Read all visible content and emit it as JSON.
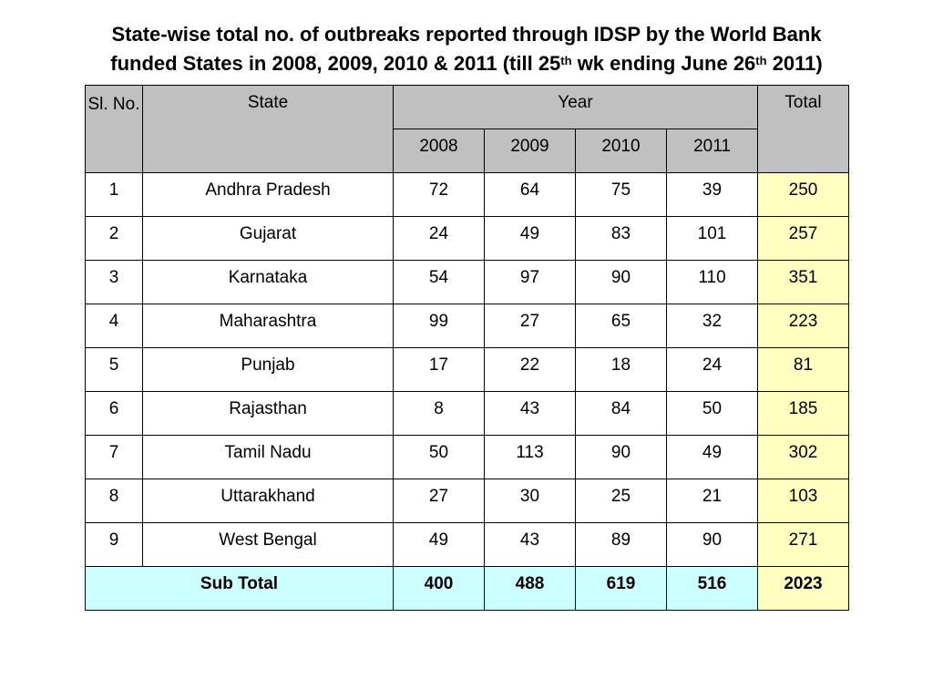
{
  "title": {
    "line1": "State-wise total no. of outbreaks reported through IDSP by the World Bank",
    "line2_a": "funded States in 2008, 2009, 2010 & 2011 (till 25",
    "sup1": "th",
    "line2_b": " wk ending June 26",
    "sup2": "th",
    "line2_c": " 2011)"
  },
  "table": {
    "headers": {
      "sl": "Sl. No.",
      "state": "State",
      "year": "Year",
      "total": "Total",
      "years": [
        "2008",
        "2009",
        "2010",
        "2011"
      ]
    },
    "rows": [
      {
        "sl": "1",
        "state": "Andhra Pradesh",
        "y2008": "72",
        "y2009": "64",
        "y2010": "75",
        "y2011": "39",
        "total": "250"
      },
      {
        "sl": "2",
        "state": "Gujarat",
        "y2008": "24",
        "y2009": "49",
        "y2010": "83",
        "y2011": "101",
        "total": "257"
      },
      {
        "sl": "3",
        "state": "Karnataka",
        "y2008": "54",
        "y2009": "97",
        "y2010": "90",
        "y2011": "110",
        "total": "351"
      },
      {
        "sl": "4",
        "state": "Maharashtra",
        "y2008": "99",
        "y2009": "27",
        "y2010": "65",
        "y2011": "32",
        "total": "223"
      },
      {
        "sl": "5",
        "state": "Punjab",
        "y2008": "17",
        "y2009": "22",
        "y2010": "18",
        "y2011": "24",
        "total": "81"
      },
      {
        "sl": "6",
        "state": "Rajasthan",
        "y2008": "8",
        "y2009": "43",
        "y2010": "84",
        "y2011": "50",
        "total": "185"
      },
      {
        "sl": "7",
        "state": "Tamil Nadu",
        "y2008": "50",
        "y2009": "113",
        "y2010": "90",
        "y2011": "49",
        "total": "302"
      },
      {
        "sl": "8",
        "state": "Uttarakhand",
        "y2008": "27",
        "y2009": "30",
        "y2010": "25",
        "y2011": "21",
        "total": "103"
      },
      {
        "sl": "9",
        "state": "West Bengal",
        "y2008": "49",
        "y2009": "43",
        "y2010": "89",
        "y2011": "90",
        "total": "271"
      }
    ],
    "subtotal": {
      "label": "Sub Total",
      "y2008": "400",
      "y2009": "488",
      "y2010": "619",
      "y2011": "516",
      "total": "2023"
    }
  },
  "colors": {
    "header_bg": "#c0c0c0",
    "total_bg": "#ffffc0",
    "subtotal_bg": "#ccffff"
  }
}
